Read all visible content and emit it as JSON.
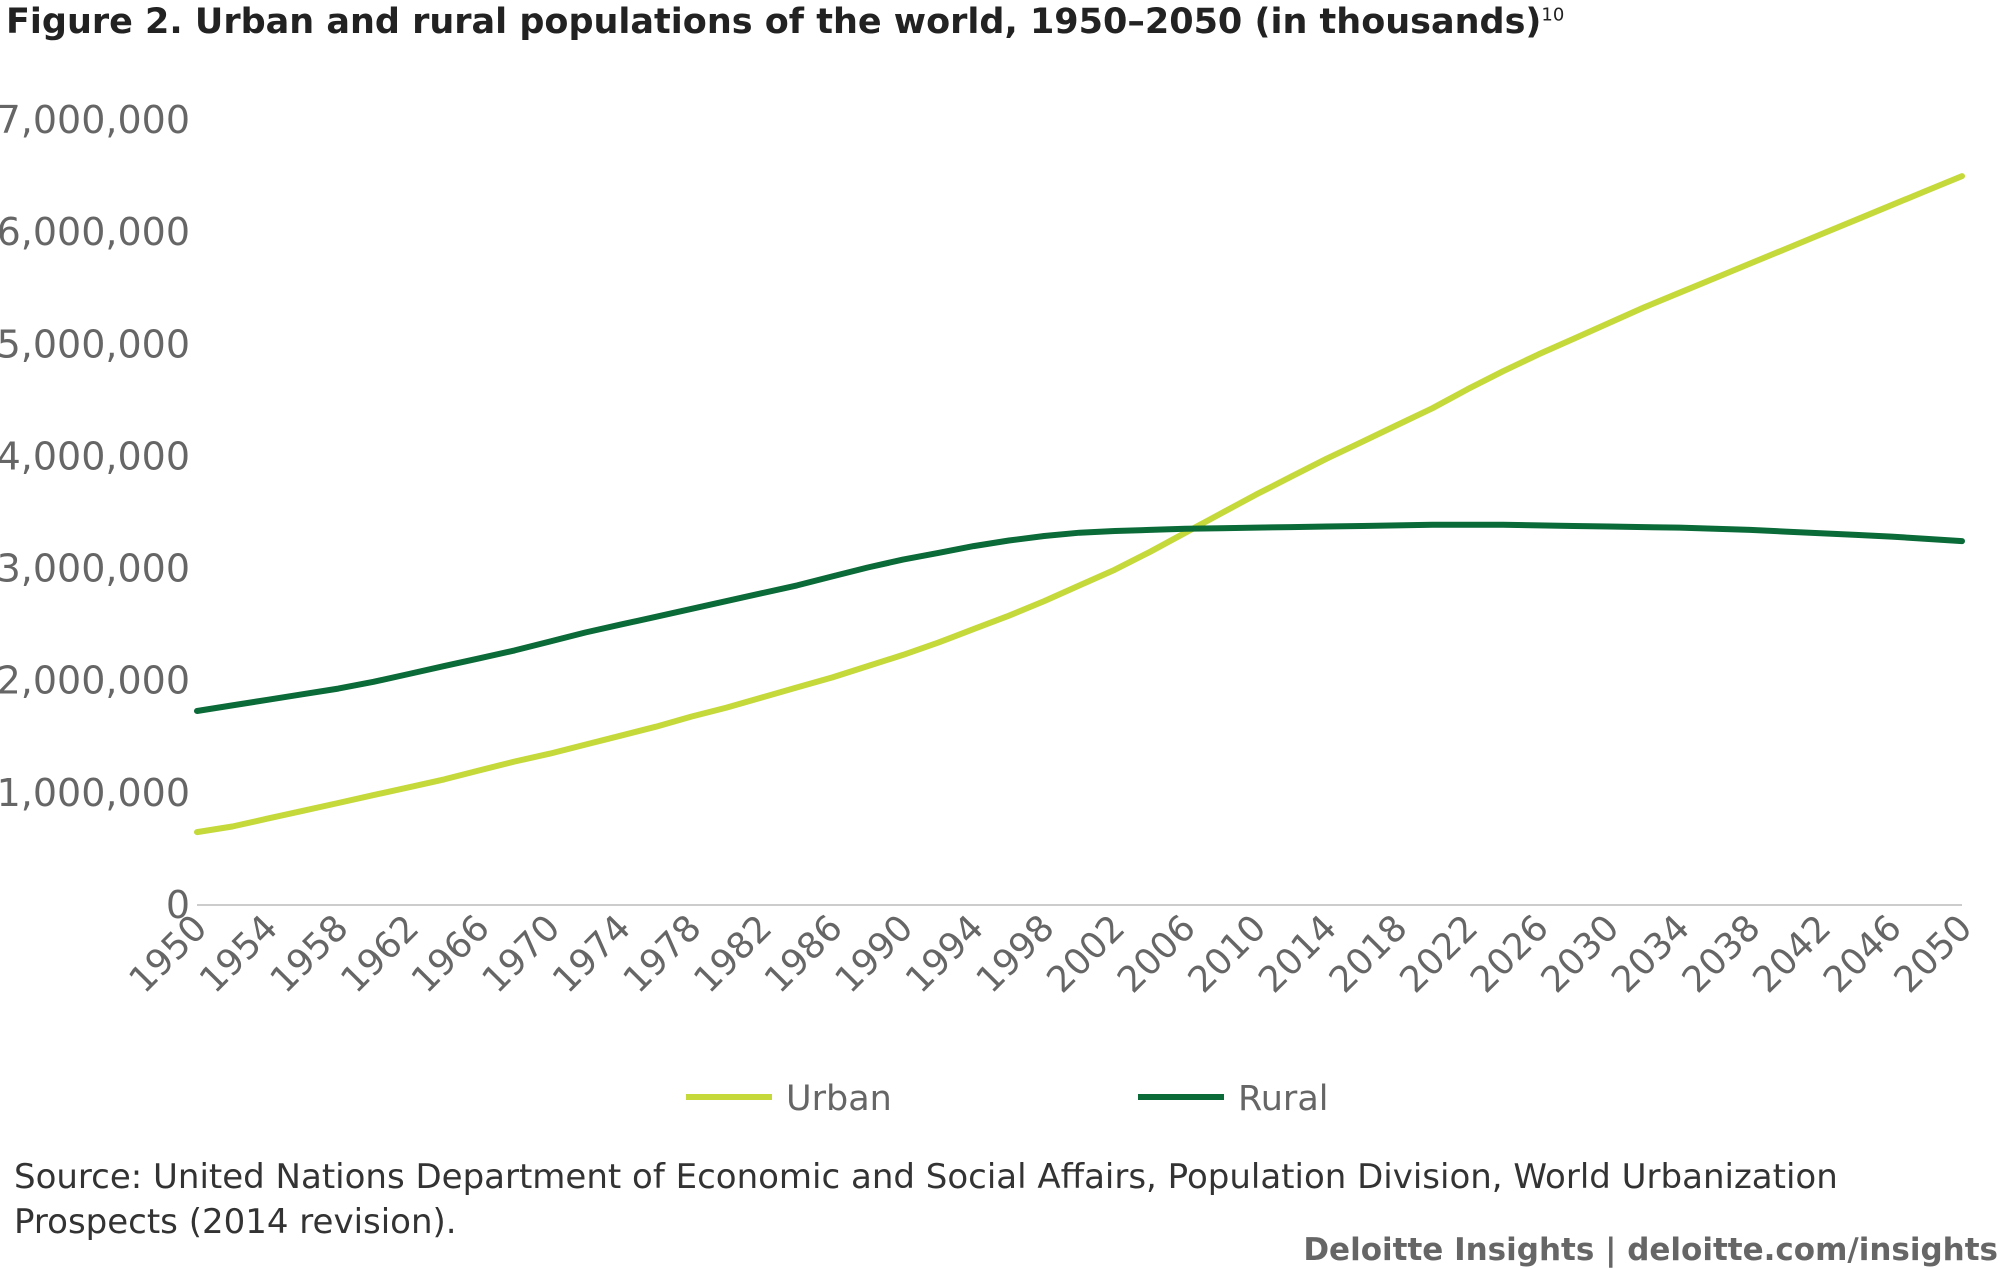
{
  "title": "Figure 2. Urban and rural populations of the world, 1950–2050 (in thousands)",
  "title_note": "10",
  "source": "Source: United Nations Department of Economic and Social Affairs, Population Division, World Urbanization Prospects (2014 revision).",
  "branding": "Deloitte Insights | deloitte.com/insights",
  "colors": {
    "urban": "#c5d93a",
    "rural": "#0a6a38",
    "axis": "#cccccc"
  },
  "chart_data": {
    "type": "line",
    "title": "Figure 2. Urban and rural populations of the world, 1950–2050 (in thousands)",
    "xlabel": "",
    "ylabel": "",
    "xlim": [
      1950,
      2050
    ],
    "ylim": [
      0,
      7000000
    ],
    "y_ticks": [
      0,
      1000000,
      2000000,
      3000000,
      4000000,
      5000000,
      6000000,
      7000000
    ],
    "y_tick_labels": [
      "0",
      "1,000,000",
      "2,000,000",
      "3,000,000",
      "4,000,000",
      "5,000,000",
      "6,000,000",
      "7,000,000"
    ],
    "x_tick_labels": [
      "1950",
      "1954",
      "1958",
      "1962",
      "1966",
      "1970",
      "1974",
      "1978",
      "1982",
      "1986",
      "1990",
      "1994",
      "1998",
      "2002",
      "2006",
      "2010",
      "2014",
      "2018",
      "2022",
      "2026",
      "2030",
      "2034",
      "2038",
      "2042",
      "2046",
      "2050"
    ],
    "grid": false,
    "legend_position": "bottom",
    "x": [
      1950,
      1952,
      1954,
      1956,
      1958,
      1960,
      1962,
      1964,
      1966,
      1968,
      1970,
      1972,
      1974,
      1976,
      1978,
      1980,
      1982,
      1984,
      1986,
      1988,
      1990,
      1992,
      1994,
      1996,
      1998,
      2000,
      2002,
      2004,
      2006,
      2008,
      2010,
      2012,
      2014,
      2016,
      2018,
      2020,
      2022,
      2024,
      2026,
      2028,
      2030,
      2032,
      2034,
      2036,
      2038,
      2040,
      2042,
      2044,
      2046,
      2048,
      2050
    ],
    "series": [
      {
        "name": "Urban",
        "values": [
          650000,
          700000,
          770000,
          840000,
          910000,
          980000,
          1050000,
          1120000,
          1200000,
          1280000,
          1350000,
          1430000,
          1510000,
          1590000,
          1680000,
          1760000,
          1850000,
          1940000,
          2030000,
          2130000,
          2230000,
          2340000,
          2460000,
          2580000,
          2710000,
          2850000,
          2990000,
          3150000,
          3320000,
          3490000,
          3660000,
          3820000,
          3980000,
          4130000,
          4280000,
          4430000,
          4600000,
          4760000,
          4910000,
          5050000,
          5190000,
          5330000,
          5460000,
          5590000,
          5720000,
          5850000,
          5980000,
          6110000,
          6240000,
          6370000,
          6500000
        ]
      },
      {
        "name": "Rural",
        "values": [
          1730000,
          1780000,
          1830000,
          1880000,
          1930000,
          1990000,
          2060000,
          2130000,
          2200000,
          2270000,
          2350000,
          2430000,
          2500000,
          2570000,
          2640000,
          2710000,
          2780000,
          2850000,
          2930000,
          3010000,
          3080000,
          3140000,
          3200000,
          3250000,
          3290000,
          3320000,
          3335000,
          3345000,
          3355000,
          3360000,
          3365000,
          3370000,
          3375000,
          3380000,
          3385000,
          3390000,
          3390000,
          3390000,
          3385000,
          3380000,
          3375000,
          3370000,
          3365000,
          3355000,
          3345000,
          3330000,
          3315000,
          3300000,
          3285000,
          3265000,
          3245000
        ]
      }
    ]
  }
}
